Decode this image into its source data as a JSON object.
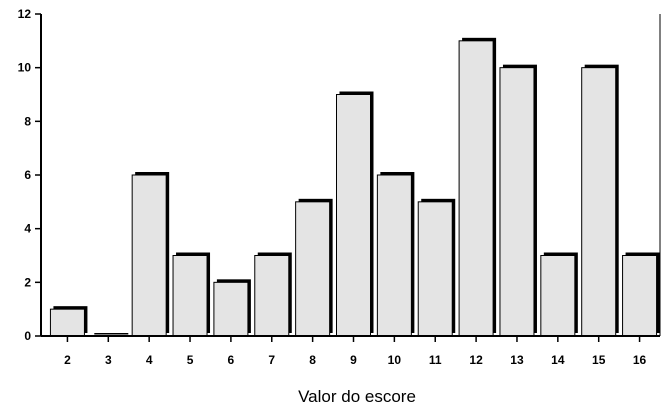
{
  "chart_data": {
    "type": "bar",
    "title": "",
    "xlabel": "Valor do escore",
    "ylabel": "",
    "categories": [
      "2",
      "3",
      "4",
      "5",
      "6",
      "7",
      "8",
      "9",
      "10",
      "11",
      "12",
      "13",
      "14",
      "15",
      "16"
    ],
    "values": [
      1,
      0,
      6,
      3,
      2,
      3,
      5,
      9,
      6,
      5,
      11,
      10,
      3,
      10,
      3
    ],
    "ylim": [
      0,
      12
    ],
    "yticks": [
      "0",
      "2",
      "4",
      "6",
      "8",
      "10",
      "12"
    ],
    "grid": false,
    "legend": "none",
    "bar_fill": "#e4e4e4",
    "bar_shadow": "#000000"
  }
}
